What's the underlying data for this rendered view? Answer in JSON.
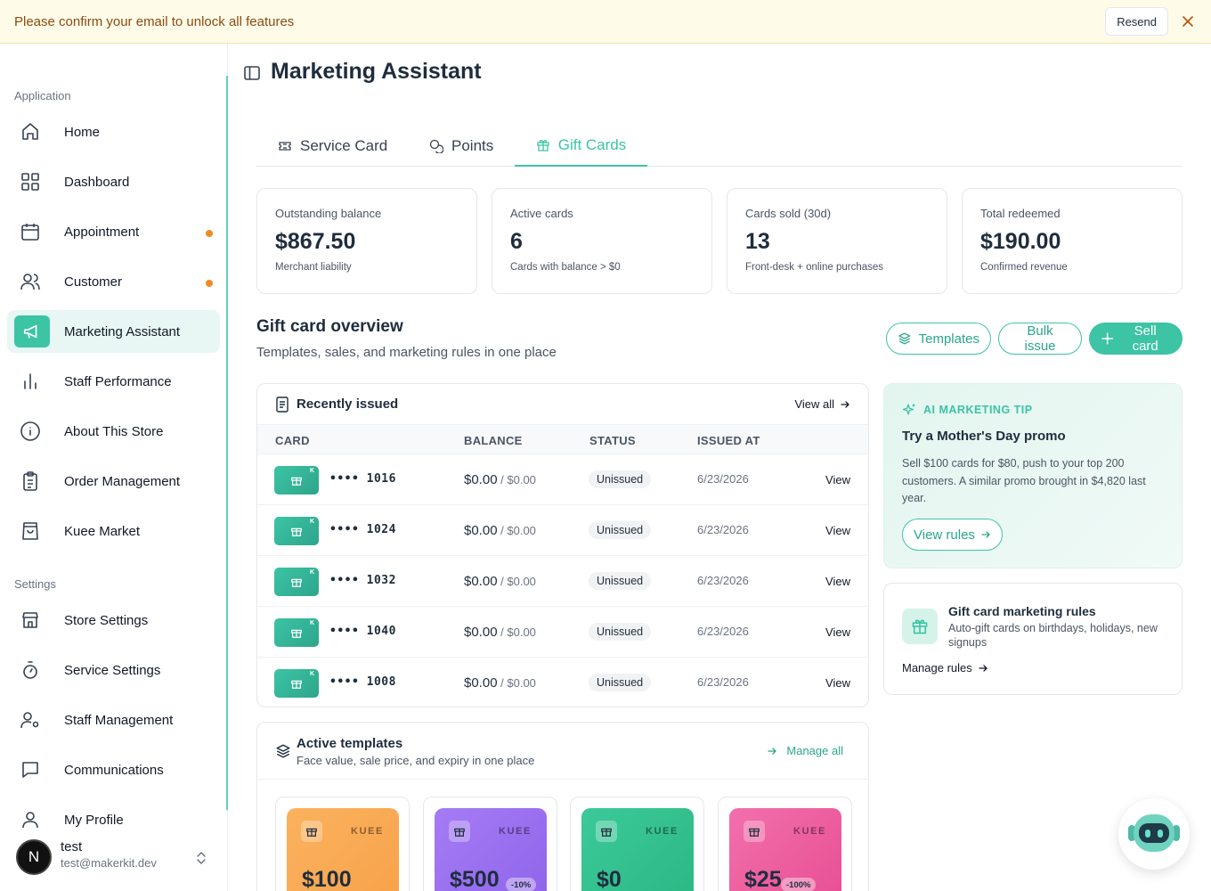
{
  "banner": {
    "text": "Please confirm your email to unlock all features",
    "resend": "Resend"
  },
  "sidebar": {
    "section_app": "Application",
    "section_settings": "Settings",
    "items": [
      {
        "label": "Home",
        "icon": "home-icon"
      },
      {
        "label": "Dashboard",
        "icon": "grid-icon"
      },
      {
        "label": "Appointment",
        "icon": "calendar-icon",
        "dot": true
      },
      {
        "label": "Customer",
        "icon": "users-icon",
        "dot": true
      },
      {
        "label": "Marketing Assistant",
        "icon": "megaphone-icon",
        "active": true
      },
      {
        "label": "Staff Performance",
        "icon": "bar-chart-icon"
      },
      {
        "label": "About This Store",
        "icon": "info-icon"
      },
      {
        "label": "Order Management",
        "icon": "clipboard-icon"
      },
      {
        "label": "Kuee Market",
        "icon": "shopping-bag-icon"
      }
    ],
    "settings_items": [
      {
        "label": "Store Settings",
        "icon": "store-icon"
      },
      {
        "label": "Service Settings",
        "icon": "timer-icon"
      },
      {
        "label": "Staff Management",
        "icon": "user-cog-icon"
      },
      {
        "label": "Communications",
        "icon": "message-icon"
      },
      {
        "label": "My Profile",
        "icon": "user-icon"
      }
    ],
    "user": {
      "initial": "N",
      "name": "test",
      "email": "test@makerkit.dev"
    }
  },
  "page": {
    "title": "Marketing Assistant"
  },
  "tabs": [
    {
      "label": "Service Card"
    },
    {
      "label": "Points"
    },
    {
      "label": "Gift Cards",
      "active": true
    }
  ],
  "stats": [
    {
      "label": "Outstanding balance",
      "value": "$867.50",
      "sub": "Merchant liability"
    },
    {
      "label": "Active cards",
      "value": "6",
      "sub": "Cards with balance > $0"
    },
    {
      "label": "Cards sold (30d)",
      "value": "13",
      "sub": "Front-desk + online purchases"
    },
    {
      "label": "Total redeemed",
      "value": "$190.00",
      "sub": "Confirmed revenue"
    }
  ],
  "overview": {
    "title": "Gift card overview",
    "subtitle": "Templates, sales, and marketing rules in one place",
    "templates_btn": "Templates",
    "bulk_btn": "Bulk issue",
    "sell_btn": "Sell card"
  },
  "recent": {
    "title": "Recently issued",
    "view_all": "View all",
    "columns": [
      "CARD",
      "BALANCE",
      "STATUS",
      "ISSUED AT"
    ],
    "rows": [
      {
        "mark": "K",
        "masked": "•••• 1016",
        "balance": "$0.00",
        "of": " / $0.00",
        "status": "Unissued",
        "issued": "6/23/2026",
        "action": "View"
      },
      {
        "mark": "K",
        "masked": "•••• 1024",
        "balance": "$0.00",
        "of": " / $0.00",
        "status": "Unissued",
        "issued": "6/23/2026",
        "action": "View"
      },
      {
        "mark": "K",
        "masked": "•••• 1032",
        "balance": "$0.00",
        "of": " / $0.00",
        "status": "Unissued",
        "issued": "6/23/2026",
        "action": "View"
      },
      {
        "mark": "K",
        "masked": "•••• 1040",
        "balance": "$0.00",
        "of": " / $0.00",
        "status": "Unissued",
        "issued": "6/23/2026",
        "action": "View"
      },
      {
        "mark": "K",
        "masked": "•••• 1008",
        "balance": "$0.00",
        "of": " / $0.00",
        "status": "Unissued",
        "issued": "6/23/2026",
        "action": "View"
      }
    ]
  },
  "templates": {
    "title": "Active templates",
    "subtitle": "Face value, sale price, and expiry in one place",
    "manage_all": "Manage all",
    "items": [
      {
        "brand": "KUEE",
        "value": "$100",
        "badge": "",
        "color": "#fbb25e"
      },
      {
        "brand": "KUEE",
        "value": "$500",
        "badge": "-10%",
        "color": "#9a72f0"
      },
      {
        "brand": "KUEE",
        "value": "$0",
        "badge": "",
        "color": "#35c08d"
      },
      {
        "brand": "KUEE",
        "value": "$25",
        "badge": "-100%",
        "color": "#ee5fa0"
      }
    ]
  },
  "tip": {
    "eyebrow": "AI MARKETING TIP",
    "title": "Try a Mother's Day promo",
    "body": "Sell $100 cards for $80, push to your top 200 customers. A similar promo brought in $4,820 last year.",
    "button": "View rules"
  },
  "rules": {
    "title": "Gift card marketing rules",
    "desc": "Auto-gift cards on birthdays, holidays, new signups",
    "link": "Manage rules"
  },
  "colors": {
    "accent": "#3cc4a5",
    "dot": "#f08a24",
    "banner_bg": "#fefbe8"
  }
}
